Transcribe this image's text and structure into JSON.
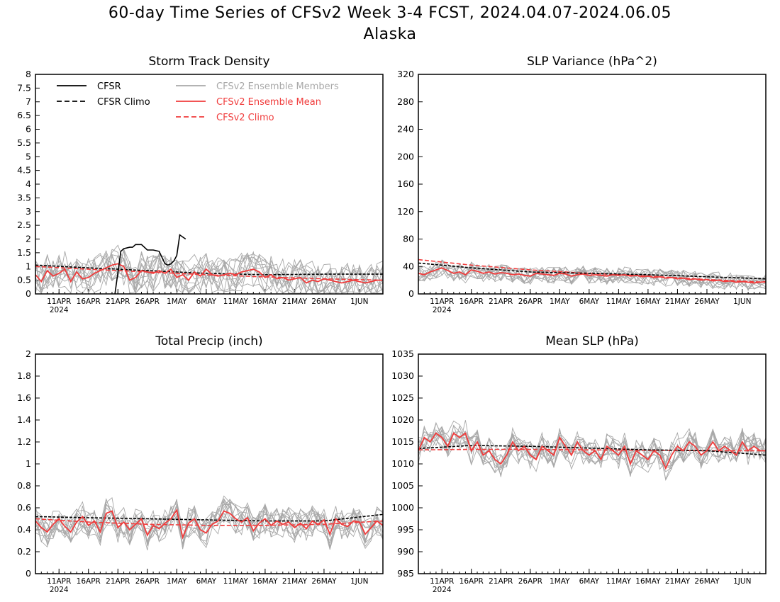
{
  "page": {
    "title": "60-day Time Series of CFSv2 Week 3-4 FCST, 2024.04.07-2024.06.05",
    "region": "Alaska"
  },
  "colors": {
    "observed": "#000000",
    "members": "#a8a8a8",
    "mean": "#f03c3c",
    "axis": "#000000"
  },
  "chart_data": [
    {
      "type": "line",
      "title": "Storm Track Density",
      "grid": false,
      "x_tick_labels": [
        "11APR",
        "16APR",
        "21APR",
        "26APR",
        "1MAY",
        "6MAY",
        "11MAY",
        "16MAY",
        "21MAY",
        "26MAY",
        "1JUN"
      ],
      "x_year_label": "2024",
      "ylim": [
        0,
        8
      ],
      "y_ticks": [
        "0",
        "0.5",
        "1",
        "1.5",
        "2",
        "2.5",
        "3",
        "3.5",
        "4",
        "4.5",
        "5",
        "5.5",
        "6",
        "6.5",
        "7",
        "7.5",
        "8"
      ],
      "legend": {
        "placement": "top",
        "entries": [
          {
            "label": "CFSR",
            "style": "solid",
            "color": "#000000"
          },
          {
            "label": "CFSR Climo",
            "style": "dashed",
            "color": "#000000"
          },
          {
            "label": "CFSv2 Ensemble Members",
            "style": "solid",
            "color": "#a8a8a8"
          },
          {
            "label": "CFSv2 Ensemble Mean",
            "style": "solid",
            "color": "#f03c3c"
          },
          {
            "label": "CFSv2 Climo",
            "style": "dashed",
            "color": "#f03c3c"
          }
        ]
      },
      "cfsr": [
        [
          14.5,
          0
        ],
        [
          15.5,
          1.55
        ],
        [
          16,
          1.65
        ],
        [
          17,
          1.7
        ],
        [
          17.5,
          1.7
        ],
        [
          18,
          1.8
        ],
        [
          19,
          1.8
        ],
        [
          20,
          1.6
        ],
        [
          21,
          1.6
        ],
        [
          22,
          1.55
        ],
        [
          23,
          1.1
        ],
        [
          23.5,
          1.05
        ],
        [
          24,
          1.1
        ],
        [
          24.5,
          1.2
        ],
        [
          25,
          1.4
        ],
        [
          25.5,
          2.15
        ],
        [
          26.5,
          2.0
        ]
      ],
      "cfsr_climo": [
        [
          1,
          1.05
        ],
        [
          10,
          0.95
        ],
        [
          20,
          0.85
        ],
        [
          30,
          0.75
        ],
        [
          40,
          0.7
        ],
        [
          50,
          0.72
        ],
        [
          60,
          0.72
        ]
      ],
      "ens_mean": [
        0.7,
        0.45,
        0.85,
        0.65,
        0.75,
        0.9,
        0.45,
        0.8,
        0.55,
        0.6,
        0.75,
        0.85,
        0.95,
        1.05,
        1.1,
        1.0,
        0.5,
        0.6,
        0.85,
        0.8,
        0.75,
        0.85,
        0.75,
        0.9,
        0.6,
        0.7,
        0.5,
        0.8,
        0.65,
        0.9,
        0.7,
        0.65,
        0.7,
        0.75,
        0.7,
        0.8,
        0.85,
        0.9,
        0.8,
        0.6,
        0.7,
        0.55,
        0.6,
        0.5,
        0.55,
        0.6,
        0.4,
        0.5,
        0.45,
        0.55,
        0.5,
        0.45,
        0.4,
        0.45,
        0.5,
        0.45,
        0.4,
        0.45,
        0.5,
        0.5
      ],
      "cfsv2_climo": [
        [
          1,
          1.0
        ],
        [
          10,
          0.9
        ],
        [
          20,
          0.8
        ],
        [
          30,
          0.7
        ],
        [
          40,
          0.62
        ],
        [
          50,
          0.55
        ],
        [
          60,
          0.5
        ]
      ],
      "members": {
        "count": 12,
        "spread": 0.7
      }
    },
    {
      "type": "line",
      "title": "SLP Variance (hPa^2)",
      "grid": false,
      "x_tick_labels": [
        "11APR",
        "16APR",
        "21APR",
        "26APR",
        "1MAY",
        "6MAY",
        "11MAY",
        "16MAY",
        "21MAY",
        "26MAY",
        "1JUN"
      ],
      "x_year_label": "2024",
      "ylim": [
        0,
        320
      ],
      "y_ticks": [
        "0",
        "40",
        "80",
        "120",
        "160",
        "200",
        "240",
        "280",
        "320"
      ],
      "cfsr_climo": [
        [
          1,
          45
        ],
        [
          10,
          38
        ],
        [
          20,
          32
        ],
        [
          30,
          30
        ],
        [
          40,
          28
        ],
        [
          50,
          25
        ],
        [
          60,
          22
        ]
      ],
      "ens_mean": [
        30,
        28,
        32,
        35,
        38,
        34,
        30,
        32,
        28,
        35,
        33,
        30,
        32,
        29,
        31,
        30,
        28,
        29,
        27,
        26,
        30,
        29,
        28,
        27,
        30,
        29,
        26,
        28,
        29,
        27,
        28,
        27,
        26,
        28,
        27,
        28,
        26,
        27,
        25,
        26,
        24,
        25,
        23,
        24,
        22,
        23,
        21,
        22,
        20,
        21,
        19,
        20,
        18,
        19,
        17,
        18,
        17,
        16,
        17,
        18
      ],
      "cfsv2_climo": [
        [
          1,
          50
        ],
        [
          10,
          42
        ],
        [
          20,
          35
        ],
        [
          30,
          30
        ],
        [
          40,
          26
        ],
        [
          50,
          21
        ],
        [
          60,
          17
        ]
      ],
      "members": {
        "count": 12,
        "spread": 12
      }
    },
    {
      "type": "line",
      "title": "Total Precip (inch)",
      "grid": false,
      "x_tick_labels": [
        "11APR",
        "16APR",
        "21APR",
        "26APR",
        "1MAY",
        "6MAY",
        "11MAY",
        "16MAY",
        "21MAY",
        "26MAY",
        "1JUN"
      ],
      "x_year_label": "2024",
      "ylim": [
        0,
        2
      ],
      "y_ticks": [
        "0",
        "0.2",
        "0.4",
        "0.6",
        "0.8",
        "1",
        "1.2",
        "1.4",
        "1.6",
        "1.8",
        "2"
      ],
      "cfsr_climo": [
        [
          1,
          0.52
        ],
        [
          10,
          0.51
        ],
        [
          20,
          0.5
        ],
        [
          30,
          0.49
        ],
        [
          40,
          0.48
        ],
        [
          50,
          0.48
        ],
        [
          60,
          0.54
        ]
      ],
      "ens_mean": [
        0.48,
        0.42,
        0.38,
        0.45,
        0.5,
        0.43,
        0.38,
        0.47,
        0.52,
        0.44,
        0.48,
        0.38,
        0.55,
        0.57,
        0.42,
        0.47,
        0.4,
        0.45,
        0.5,
        0.35,
        0.44,
        0.41,
        0.46,
        0.5,
        0.58,
        0.33,
        0.46,
        0.5,
        0.4,
        0.37,
        0.45,
        0.48,
        0.57,
        0.55,
        0.5,
        0.47,
        0.51,
        0.39,
        0.46,
        0.5,
        0.44,
        0.48,
        0.45,
        0.47,
        0.42,
        0.46,
        0.41,
        0.48,
        0.45,
        0.49,
        0.36,
        0.5,
        0.45,
        0.43,
        0.48,
        0.47,
        0.36,
        0.42,
        0.48,
        0.44
      ],
      "cfsv2_climo": [
        [
          1,
          0.5
        ],
        [
          10,
          0.47
        ],
        [
          20,
          0.45
        ],
        [
          30,
          0.44
        ],
        [
          40,
          0.44
        ],
        [
          50,
          0.45
        ],
        [
          60,
          0.48
        ]
      ],
      "members": {
        "count": 12,
        "spread": 0.14
      }
    },
    {
      "type": "line",
      "title": "Mean SLP (hPa)",
      "grid": false,
      "x_tick_labels": [
        "11APR",
        "16APR",
        "21APR",
        "26APR",
        "1MAY",
        "6MAY",
        "11MAY",
        "16MAY",
        "21MAY",
        "26MAY",
        "1JUN"
      ],
      "x_year_label": "2024",
      "ylim": [
        985,
        1035
      ],
      "y_ticks": [
        "985",
        "990",
        "995",
        "1000",
        "1005",
        "1010",
        "1015",
        "1020",
        "1025",
        "1030",
        "1035"
      ],
      "cfsr_climo": [
        [
          1,
          1013.5
        ],
        [
          10,
          1014.2
        ],
        [
          20,
          1014.0
        ],
        [
          30,
          1013.6
        ],
        [
          40,
          1013.2
        ],
        [
          50,
          1013.0
        ],
        [
          60,
          1012.0
        ]
      ],
      "ens_mean": [
        1013,
        1016,
        1015,
        1017,
        1016,
        1014,
        1017,
        1016,
        1017,
        1013,
        1015,
        1012,
        1013,
        1011,
        1010,
        1012,
        1015,
        1013,
        1014,
        1012,
        1011,
        1014,
        1013,
        1012,
        1016,
        1014,
        1012,
        1015,
        1013,
        1012,
        1013,
        1011,
        1014,
        1013,
        1012,
        1014,
        1010,
        1013,
        1012,
        1011,
        1013,
        1012,
        1009,
        1012,
        1014,
        1013,
        1015,
        1014,
        1012,
        1013,
        1015,
        1013,
        1014,
        1013,
        1012,
        1015,
        1013,
        1014,
        1013,
        1013
      ],
      "cfsv2_climo": [
        [
          1,
          1013.2
        ],
        [
          10,
          1013.3
        ],
        [
          20,
          1013.3
        ],
        [
          30,
          1013.2
        ],
        [
          40,
          1013.1
        ],
        [
          50,
          1013.0
        ],
        [
          60,
          1013.0
        ]
      ],
      "members": {
        "count": 12,
        "spread": 3.2
      }
    }
  ]
}
